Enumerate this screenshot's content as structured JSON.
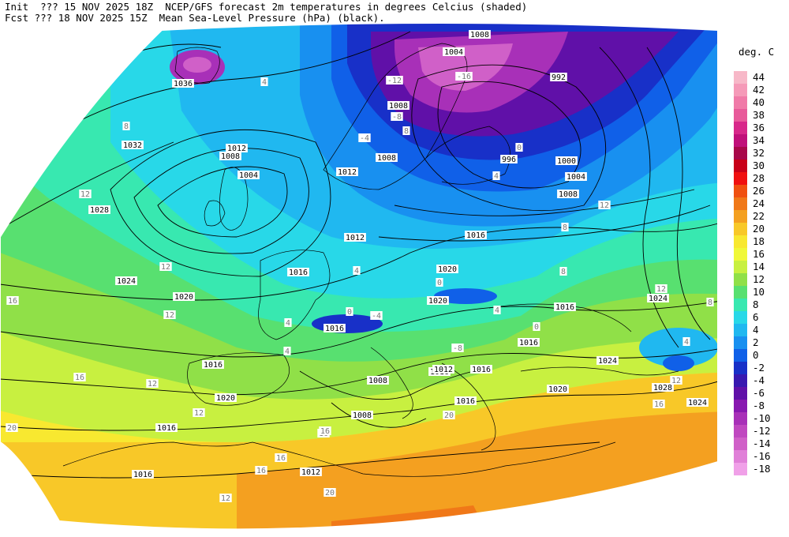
{
  "header": {
    "line1": "Init  ??? 15 NOV 2025 18Z  NCEP/GFS forecast 2m temperatures in degrees Celcius (shaded)",
    "line2": "Fcst ??? 18 NOV 2025 15Z  Mean Sea-Level Pressure (hPa) (black)."
  },
  "legend": {
    "title": "deg. C",
    "entries": [
      {
        "label": "44",
        "color": "#f7b8c8"
      },
      {
        "label": "42",
        "color": "#f59ab8"
      },
      {
        "label": "40",
        "color": "#f07aa8"
      },
      {
        "label": "38",
        "color": "#e85a9a"
      },
      {
        "label": "36",
        "color": "#d8288a"
      },
      {
        "label": "34",
        "color": "#c0107a"
      },
      {
        "label": "32",
        "color": "#a8084a"
      },
      {
        "label": "30",
        "color": "#c80018"
      },
      {
        "label": "28",
        "color": "#f01010"
      },
      {
        "label": "26",
        "color": "#f05010"
      },
      {
        "label": "24",
        "color": "#f07818"
      },
      {
        "label": "22",
        "color": "#f4a020"
      },
      {
        "label": "20",
        "color": "#f8c828"
      },
      {
        "label": "18",
        "color": "#f8e830"
      },
      {
        "label": "16",
        "color": "#f0f838"
      },
      {
        "label": "14",
        "color": "#c8f040"
      },
      {
        "label": "12",
        "color": "#90e048"
      },
      {
        "label": "10",
        "color": "#58e070"
      },
      {
        "label": "8",
        "color": "#38e8b0"
      },
      {
        "label": "6",
        "color": "#28d8e8"
      },
      {
        "label": "4",
        "color": "#20b8f0"
      },
      {
        "label": "2",
        "color": "#1890f0"
      },
      {
        "label": "0",
        "color": "#1060e8"
      },
      {
        "label": "-2",
        "color": "#1830c8"
      },
      {
        "label": "-4",
        "color": "#3818b0"
      },
      {
        "label": "-6",
        "color": "#6010a8"
      },
      {
        "label": "-8",
        "color": "#8818b0"
      },
      {
        "label": "-10",
        "color": "#a830b8"
      },
      {
        "label": "-12",
        "color": "#c048c0"
      },
      {
        "label": "-14",
        "color": "#d060c8"
      },
      {
        "label": "-16",
        "color": "#e080d8"
      },
      {
        "label": "-18",
        "color": "#f0a0e8"
      }
    ]
  },
  "isobar_labels": [
    "1008",
    "1004",
    "992",
    "1036",
    "1032",
    "1012",
    "1008",
    "1004",
    "1008",
    "1008",
    "1000",
    "996",
    "1004",
    "1008",
    "1028",
    "1012",
    "1012",
    "1016",
    "1016",
    "1020",
    "1024",
    "1020",
    "1020",
    "1024",
    "1016",
    "1016",
    "1016",
    "1020",
    "1016",
    "1016",
    "1024",
    "1016",
    "1020",
    "1028",
    "1024",
    "1012",
    "1008",
    "1008",
    "1016",
    "1016",
    "1016",
    "1012"
  ],
  "temperature_labels": [
    "8",
    "4",
    "12",
    "12",
    "16",
    "12",
    "16",
    "12",
    "12",
    "16",
    "20",
    "16",
    "12",
    "16",
    "16",
    "20",
    "20",
    "8",
    "8",
    "12",
    "4",
    "4",
    "0",
    "0",
    "4",
    "-4",
    "-16",
    "-12",
    "-8",
    "-4",
    "0",
    "4",
    "8",
    "12",
    "12",
    "16",
    "8",
    "4",
    "4",
    "0",
    "-8"
  ]
}
